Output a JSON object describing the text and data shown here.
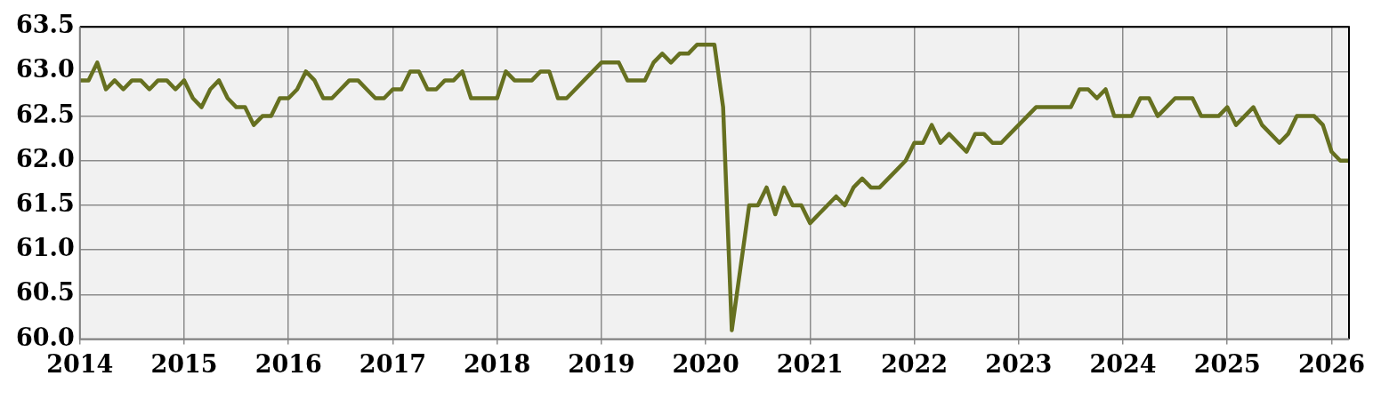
{
  "chart_data": {
    "type": "line",
    "x": [
      "2014-01",
      "2014-02",
      "2014-03",
      "2014-04",
      "2014-05",
      "2014-06",
      "2014-07",
      "2014-08",
      "2014-09",
      "2014-10",
      "2014-11",
      "2014-12",
      "2015-01",
      "2015-02",
      "2015-03",
      "2015-04",
      "2015-05",
      "2015-06",
      "2015-07",
      "2015-08",
      "2015-09",
      "2015-10",
      "2015-11",
      "2015-12",
      "2016-01",
      "2016-02",
      "2016-03",
      "2016-04",
      "2016-05",
      "2016-06",
      "2016-07",
      "2016-08",
      "2016-09",
      "2016-10",
      "2016-11",
      "2016-12",
      "2017-01",
      "2017-02",
      "2017-03",
      "2017-04",
      "2017-05",
      "2017-06",
      "2017-07",
      "2017-08",
      "2017-09",
      "2017-10",
      "2017-11",
      "2017-12",
      "2018-01",
      "2018-02",
      "2018-03",
      "2018-04",
      "2018-05",
      "2018-06",
      "2018-07",
      "2018-08",
      "2018-09",
      "2018-10",
      "2018-11",
      "2018-12",
      "2019-01",
      "2019-02",
      "2019-03",
      "2019-04",
      "2019-05",
      "2019-06",
      "2019-07",
      "2019-08",
      "2019-09",
      "2019-10",
      "2019-11",
      "2019-12",
      "2020-01",
      "2020-02",
      "2020-03",
      "2020-04",
      "2020-05",
      "2020-06",
      "2020-07",
      "2020-08",
      "2020-09",
      "2020-10",
      "2020-11",
      "2020-12",
      "2021-01",
      "2021-02",
      "2021-03",
      "2021-04",
      "2021-05",
      "2021-06",
      "2021-07",
      "2021-08",
      "2021-09",
      "2021-10",
      "2021-11",
      "2021-12",
      "2022-01",
      "2022-02",
      "2022-03",
      "2022-04",
      "2022-05",
      "2022-06",
      "2022-07",
      "2022-08",
      "2022-09",
      "2022-10",
      "2022-11",
      "2022-12",
      "2023-01",
      "2023-02",
      "2023-03",
      "2023-04",
      "2023-05",
      "2023-06",
      "2023-07",
      "2023-08",
      "2023-09",
      "2023-10",
      "2023-11",
      "2023-12",
      "2024-01",
      "2024-02",
      "2024-03",
      "2024-04",
      "2024-05",
      "2024-06",
      "2024-07",
      "2024-08",
      "2024-09",
      "2024-10",
      "2024-11",
      "2024-12",
      "2025-01",
      "2025-02",
      "2025-03",
      "2025-04",
      "2025-05",
      "2025-06",
      "2025-07",
      "2025-08",
      "2025-09",
      "2025-10",
      "2025-11",
      "2025-12",
      "2026-01",
      "2026-02",
      "2026-03"
    ],
    "series": [
      {
        "color": "#667020",
        "values": [
          62.9,
          62.9,
          63.1,
          62.8,
          62.9,
          62.8,
          62.9,
          62.9,
          62.8,
          62.9,
          62.9,
          62.8,
          62.9,
          62.7,
          62.6,
          62.8,
          62.9,
          62.7,
          62.6,
          62.6,
          62.4,
          62.5,
          62.5,
          62.7,
          62.7,
          62.8,
          63.0,
          62.9,
          62.7,
          62.7,
          62.8,
          62.9,
          62.9,
          62.8,
          62.7,
          62.7,
          62.8,
          62.8,
          63.0,
          63.0,
          62.8,
          62.8,
          62.9,
          62.9,
          63.0,
          62.7,
          62.7,
          62.7,
          62.7,
          63.0,
          62.9,
          62.9,
          62.9,
          63.0,
          63.0,
          62.7,
          62.7,
          62.8,
          62.9,
          63.0,
          63.1,
          63.1,
          63.1,
          62.9,
          62.9,
          62.9,
          63.1,
          63.2,
          63.1,
          63.2,
          63.2,
          63.3,
          63.3,
          63.3,
          62.6,
          60.1,
          60.8,
          61.5,
          61.5,
          61.7,
          61.4,
          61.7,
          61.5,
          61.5,
          61.3,
          61.4,
          61.5,
          61.6,
          61.5,
          61.7,
          61.8,
          61.7,
          61.7,
          61.8,
          61.9,
          62.0,
          62.2,
          62.2,
          62.4,
          62.2,
          62.3,
          62.2,
          62.1,
          62.3,
          62.3,
          62.2,
          62.2,
          62.3,
          62.4,
          62.5,
          62.6,
          62.6,
          62.6,
          62.6,
          62.6,
          62.8,
          62.8,
          62.7,
          62.8,
          62.5,
          62.5,
          62.5,
          62.7,
          62.7,
          62.5,
          62.6,
          62.7,
          62.7,
          62.7,
          62.5,
          62.5,
          62.5,
          62.6,
          62.4,
          62.5,
          62.6,
          62.4,
          62.3,
          62.2,
          62.3,
          62.5,
          62.5,
          62.5,
          62.4,
          62.1,
          62.0,
          62.0
        ]
      }
    ],
    "xlim": [
      "2014-01",
      "2026-03"
    ],
    "xticks": [
      "2014",
      "2015",
      "2016",
      "2017",
      "2018",
      "2019",
      "2020",
      "2021",
      "2022",
      "2023",
      "2024",
      "2025",
      "2026"
    ],
    "ylim": [
      60,
      63.5
    ],
    "yticks": [
      {
        "value": 60,
        "label": "60.0"
      },
      {
        "value": 60.5,
        "label": "60.5"
      },
      {
        "value": 61,
        "label": "61.0"
      },
      {
        "value": 61.5,
        "label": "61.5"
      },
      {
        "value": 62,
        "label": "62.0"
      },
      {
        "value": 62.5,
        "label": "62.5"
      },
      {
        "value": 63,
        "label": "63.0"
      },
      {
        "value": 63.5,
        "label": "63.5"
      }
    ],
    "grid": true,
    "legend": false,
    "marker": "none",
    "line_style": "solid"
  }
}
